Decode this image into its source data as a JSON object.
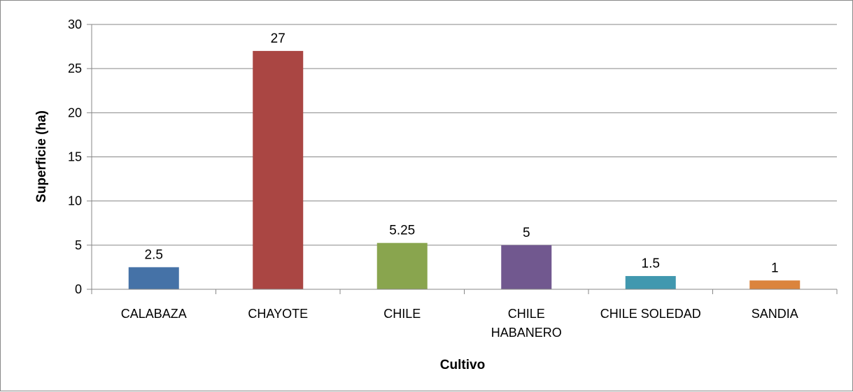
{
  "chart_data": {
    "type": "bar",
    "categories": [
      "CALABAZA",
      "CHAYOTE",
      "CHILE",
      "CHILE HABANERO",
      "CHILE SOLEDAD",
      "SANDIA"
    ],
    "category_lines": [
      [
        "CALABAZA"
      ],
      [
        "CHAYOTE"
      ],
      [
        "CHILE"
      ],
      [
        "CHILE",
        "HABANERO"
      ],
      [
        "CHILE SOLEDAD"
      ],
      [
        "SANDIA"
      ]
    ],
    "values": [
      2.5,
      27,
      5.25,
      5,
      1.5,
      1
    ],
    "value_labels": [
      "2.5",
      "27",
      "5.25",
      "5",
      "1.5",
      "1"
    ],
    "colors": [
      "#4572A7",
      "#AA4643",
      "#89A54E",
      "#71588F",
      "#4198AF",
      "#DB843D"
    ],
    "xlabel": "Cultivo",
    "ylabel": "Superficie (ha)",
    "ylim": [
      0,
      30
    ],
    "yticks": [
      0,
      5,
      10,
      15,
      20,
      25,
      30
    ],
    "grid": true,
    "legend": "none"
  }
}
